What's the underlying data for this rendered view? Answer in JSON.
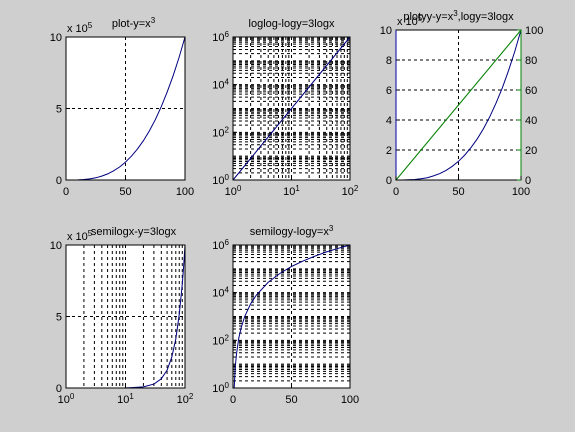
{
  "colors": {
    "background": "#cfcfcf",
    "axes": "#ffffff",
    "curve": "#00007f",
    "axis_left": "#0000aa",
    "axis_right": "#008000",
    "line_right": "#008000"
  },
  "chart_data": [
    {
      "type": "line",
      "title": "plot-y=x3",
      "title_parts": [
        "plot-y=x",
        "3"
      ],
      "multiplier": [
        "x 10",
        "5"
      ],
      "x": [
        0,
        5,
        10,
        15,
        20,
        25,
        30,
        35,
        40,
        45,
        50,
        55,
        60,
        65,
        70,
        75,
        80,
        85,
        90,
        95,
        100
      ],
      "series": [
        {
          "values": [
            0,
            0.00125,
            0.01,
            0.03375,
            0.08,
            0.15625,
            0.27,
            0.42875,
            0.64,
            0.91125,
            1.25,
            1.66375,
            2.16,
            2.74625,
            3.43,
            4.21875,
            5.12,
            6.14125,
            7.29,
            8.57375,
            10
          ]
        }
      ],
      "xlim": [
        0,
        100
      ],
      "ylim": [
        0,
        10
      ],
      "xticks": [
        0,
        50,
        100
      ],
      "yticks": [
        0,
        5,
        10
      ],
      "xticklabels": [
        "0",
        "50",
        "100"
      ],
      "yticklabels": [
        "0",
        "5",
        "10"
      ],
      "grid": true
    },
    {
      "type": "line",
      "title": "loglog-logy=3logx",
      "title_parts": [
        "loglog-logy=3logx",
        ""
      ],
      "x": [
        1,
        2,
        5,
        10,
        20,
        50,
        100
      ],
      "series": [
        {
          "values": [
            1,
            8,
            125,
            1000,
            8000,
            125000,
            1000000
          ]
        }
      ],
      "xscale": "log",
      "yscale": "log",
      "xlim": [
        1,
        100
      ],
      "ylim": [
        1,
        1000000
      ],
      "xticks": [
        1,
        10,
        100
      ],
      "yticks": [
        1,
        100,
        10000,
        1000000
      ],
      "xticklabels": [
        [
          "10",
          "0"
        ],
        [
          "10",
          "1"
        ],
        [
          "10",
          "2"
        ]
      ],
      "yticklabels": [
        [
          "10",
          "0"
        ],
        [
          "10",
          "2"
        ],
        [
          "10",
          "4"
        ],
        [
          "10",
          "6"
        ]
      ],
      "grid": true
    },
    {
      "type": "line",
      "title": "plotyy-y=x3,logy=3logx",
      "title_parts": [
        "plotyy-y=x",
        "3",
        ",logy=3logx"
      ],
      "multiplier": [
        "x 10",
        "5"
      ],
      "x": [
        0,
        5,
        10,
        15,
        20,
        25,
        30,
        35,
        40,
        45,
        50,
        55,
        60,
        65,
        70,
        75,
        80,
        85,
        90,
        95,
        100
      ],
      "series": [
        {
          "axis": "left",
          "values": [
            0,
            0.00125,
            0.01,
            0.03375,
            0.08,
            0.15625,
            0.27,
            0.42875,
            0.64,
            0.91125,
            1.25,
            1.66375,
            2.16,
            2.74625,
            3.43,
            4.21875,
            5.12,
            6.14125,
            7.29,
            8.57375,
            10
          ]
        },
        {
          "axis": "right",
          "values": [
            0,
            5,
            10,
            15,
            20,
            25,
            30,
            35,
            40,
            45,
            50,
            55,
            60,
            65,
            70,
            75,
            80,
            85,
            90,
            95,
            100
          ]
        }
      ],
      "xlim": [
        0,
        100
      ],
      "ylim": [
        0,
        10
      ],
      "ylim_right": [
        0,
        100
      ],
      "xticks": [
        0,
        50,
        100
      ],
      "xticklabels": [
        "0",
        "50",
        "100"
      ],
      "yticks": [
        0,
        2,
        4,
        6,
        8,
        10
      ],
      "yticklabels": [
        "0",
        "2",
        "4",
        "6",
        "8",
        "10"
      ],
      "yticks_right": [
        0,
        20,
        40,
        60,
        80,
        100
      ],
      "yticklabels_right": [
        "0",
        "20",
        "40",
        "60",
        "80",
        "100"
      ],
      "grid": true
    },
    {
      "type": "line",
      "title": "semilogx-y=3logx",
      "title_parts": [
        "semilogx-y=3logx",
        ""
      ],
      "multiplier": [
        "x 10",
        "5"
      ],
      "x": [
        1,
        10,
        20,
        30,
        40,
        50,
        60,
        70,
        80,
        90,
        95,
        100
      ],
      "series": [
        {
          "values": [
            1e-05,
            0.01,
            0.08,
            0.27,
            0.64,
            1.25,
            2.16,
            3.43,
            5.12,
            7.29,
            8.57375,
            10
          ]
        }
      ],
      "xscale": "log",
      "xlim": [
        1,
        100
      ],
      "ylim": [
        0,
        10
      ],
      "xticks": [
        1,
        10,
        100
      ],
      "xticklabels": [
        [
          "10",
          "0"
        ],
        [
          "10",
          "1"
        ],
        [
          "10",
          "2"
        ]
      ],
      "yticks": [
        0,
        5,
        10
      ],
      "yticklabels": [
        "0",
        "5",
        "10"
      ],
      "grid": true
    },
    {
      "type": "line",
      "title": "semilogy-logy=x3",
      "title_parts": [
        "semilogy-logy=x",
        "3"
      ],
      "x": [
        1,
        2,
        3,
        5,
        7,
        10,
        15,
        20,
        30,
        40,
        50,
        60,
        70,
        80,
        90,
        100
      ],
      "series": [
        {
          "values": [
            1,
            8,
            27,
            125,
            343,
            1000,
            3375,
            8000,
            27000,
            64000,
            125000,
            216000,
            343000,
            512000,
            729000,
            1000000
          ]
        }
      ],
      "yscale": "log",
      "xlim": [
        0,
        100
      ],
      "ylim": [
        1,
        1000000
      ],
      "xticks": [
        0,
        50,
        100
      ],
      "xticklabels": [
        "0",
        "50",
        "100"
      ],
      "yticks": [
        1,
        100,
        10000,
        1000000
      ],
      "yticklabels": [
        [
          "10",
          "0"
        ],
        [
          "10",
          "2"
        ],
        [
          "10",
          "4"
        ],
        [
          "10",
          "6"
        ]
      ],
      "grid": true
    }
  ]
}
